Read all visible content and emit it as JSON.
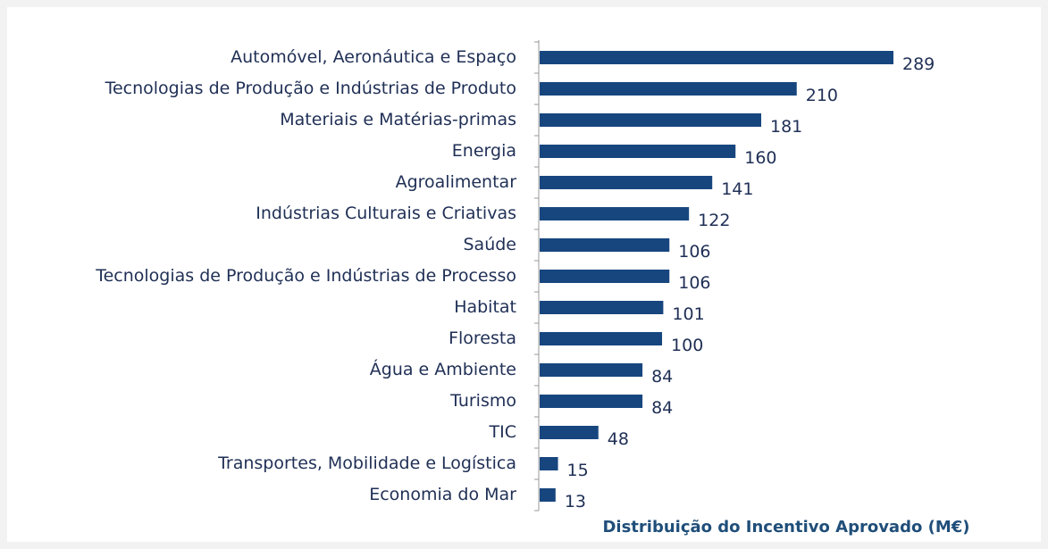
{
  "chart_data": {
    "type": "barh",
    "categories": [
      "Automóvel, Aeronáutica e Espaço",
      "Tecnologias de Produção e Indústrias de Produto",
      "Materiais e Matérias-primas",
      "Energia",
      "Agroalimentar",
      "Indústrias Culturais e Criativas",
      "Saúde",
      "Tecnologias de Produção e Indústrias de Processo",
      "Habitat",
      "Floresta",
      "Água e Ambiente",
      "Turismo",
      "TIC",
      "Transportes, Mobilidade e Logística",
      "Economia do Mar"
    ],
    "values": [
      289,
      210,
      181,
      160,
      141,
      122,
      106,
      106,
      101,
      100,
      84,
      84,
      48,
      15,
      13
    ],
    "color": "#17467f",
    "x_label": "Distribuição do Incentivo Aprovado (M€)"
  }
}
